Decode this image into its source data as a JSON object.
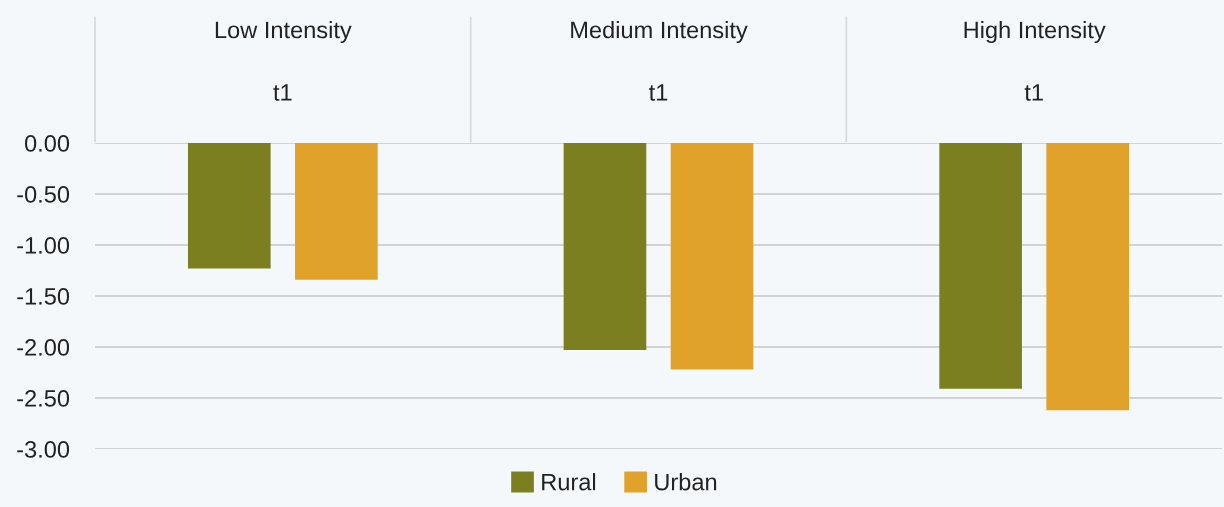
{
  "chart_data": {
    "type": "bar",
    "categories": [
      "t1",
      "t1",
      "t1"
    ],
    "annotations": [
      "Low Intensity",
      "Medium Intensity",
      "High Intensity"
    ],
    "series": [
      {
        "name": "Rural",
        "color": "#7b7f1f",
        "values": [
          -1.23,
          -2.03,
          -2.41
        ]
      },
      {
        "name": "Urban",
        "color": "#e0a22b",
        "values": [
          -1.34,
          -2.22,
          -2.62
        ]
      }
    ],
    "ylim": [
      -3,
      0
    ],
    "yticks": [
      {
        "value": 0,
        "label": "0.00"
      },
      {
        "value": -0.5,
        "label": "-0.50"
      },
      {
        "value": -1,
        "label": "-1.00"
      },
      {
        "value": -1.5,
        "label": "-1.50"
      },
      {
        "value": -2,
        "label": "-2.00"
      },
      {
        "value": -2.5,
        "label": "-2.50"
      },
      {
        "value": -3,
        "label": "-3.00"
      }
    ],
    "grid": "y",
    "legend": "bottom"
  }
}
